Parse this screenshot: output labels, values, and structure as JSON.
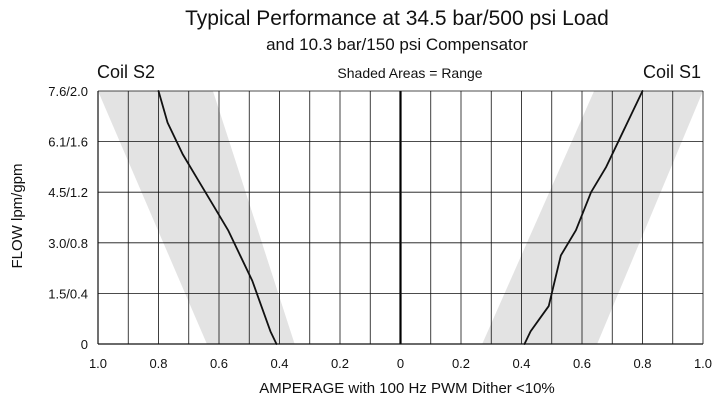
{
  "chart_data": {
    "type": "line",
    "title": "Typical Performance at 34.5 bar/500 psi Load",
    "subtitle": "and 10.3 bar/150 psi Compensator",
    "annotation": "Shaded Areas = Range",
    "xlabel": "AMPERAGE with 100 Hz PWM Dither <10%",
    "ylabel": "FLOW lpm/gpm",
    "x_axis_direction": "S2 amperage increases to the left of center, S1 amperage increases to the right of center",
    "xlim": [
      -1.0,
      1.0
    ],
    "ylim": [
      0,
      2.0
    ],
    "grid": true,
    "x_tick_values": [
      -1.0,
      -0.8,
      -0.6,
      -0.4,
      -0.2,
      0,
      0.2,
      0.4,
      0.6,
      0.8,
      1.0
    ],
    "x_tick_labels": [
      "1.0",
      "0.8",
      "0.6",
      "0.4",
      "0.2",
      "0",
      "0.2",
      "0.4",
      "0.6",
      "0.8",
      "1.0"
    ],
    "y_tick_values": [
      0,
      0.4,
      0.8,
      1.2,
      1.6,
      2.0
    ],
    "y_tick_labels": [
      "0",
      "1.5/0.4",
      "3.0/0.8",
      "4.5/1.2",
      "6.1/1.6",
      "7.6/2.0"
    ],
    "series": [
      {
        "name": "Coil S2",
        "x": [
          -0.41,
          -0.43,
          -0.46,
          -0.49,
          -0.53,
          -0.57,
          -0.62,
          -0.67,
          -0.72,
          -0.77,
          -0.8
        ],
        "y": [
          0,
          0.1,
          0.3,
          0.5,
          0.7,
          0.9,
          1.1,
          1.3,
          1.5,
          1.75,
          2.0
        ]
      },
      {
        "name": "Coil S1",
        "x": [
          0.41,
          0.43,
          0.46,
          0.49,
          0.51,
          0.53,
          0.58,
          0.63,
          0.68,
          0.74,
          0.8
        ],
        "y": [
          0,
          0.1,
          0.2,
          0.3,
          0.5,
          0.7,
          0.9,
          1.2,
          1.4,
          1.7,
          2.0
        ]
      }
    ],
    "shaded_ranges": [
      {
        "name": "Coil S2 range",
        "polygon": [
          [
            -1.0,
            2.0
          ],
          [
            -0.62,
            2.0
          ],
          [
            -0.35,
            0
          ],
          [
            -0.64,
            0
          ]
        ]
      },
      {
        "name": "Coil S1 range",
        "polygon": [
          [
            0.64,
            2.0
          ],
          [
            1.0,
            2.0
          ],
          [
            0.65,
            0
          ],
          [
            0.27,
            0
          ]
        ]
      }
    ],
    "colors": {
      "line": "#111111",
      "grid": "#111111",
      "shade": "#e3e3e3",
      "center_axis": "#000000"
    }
  }
}
